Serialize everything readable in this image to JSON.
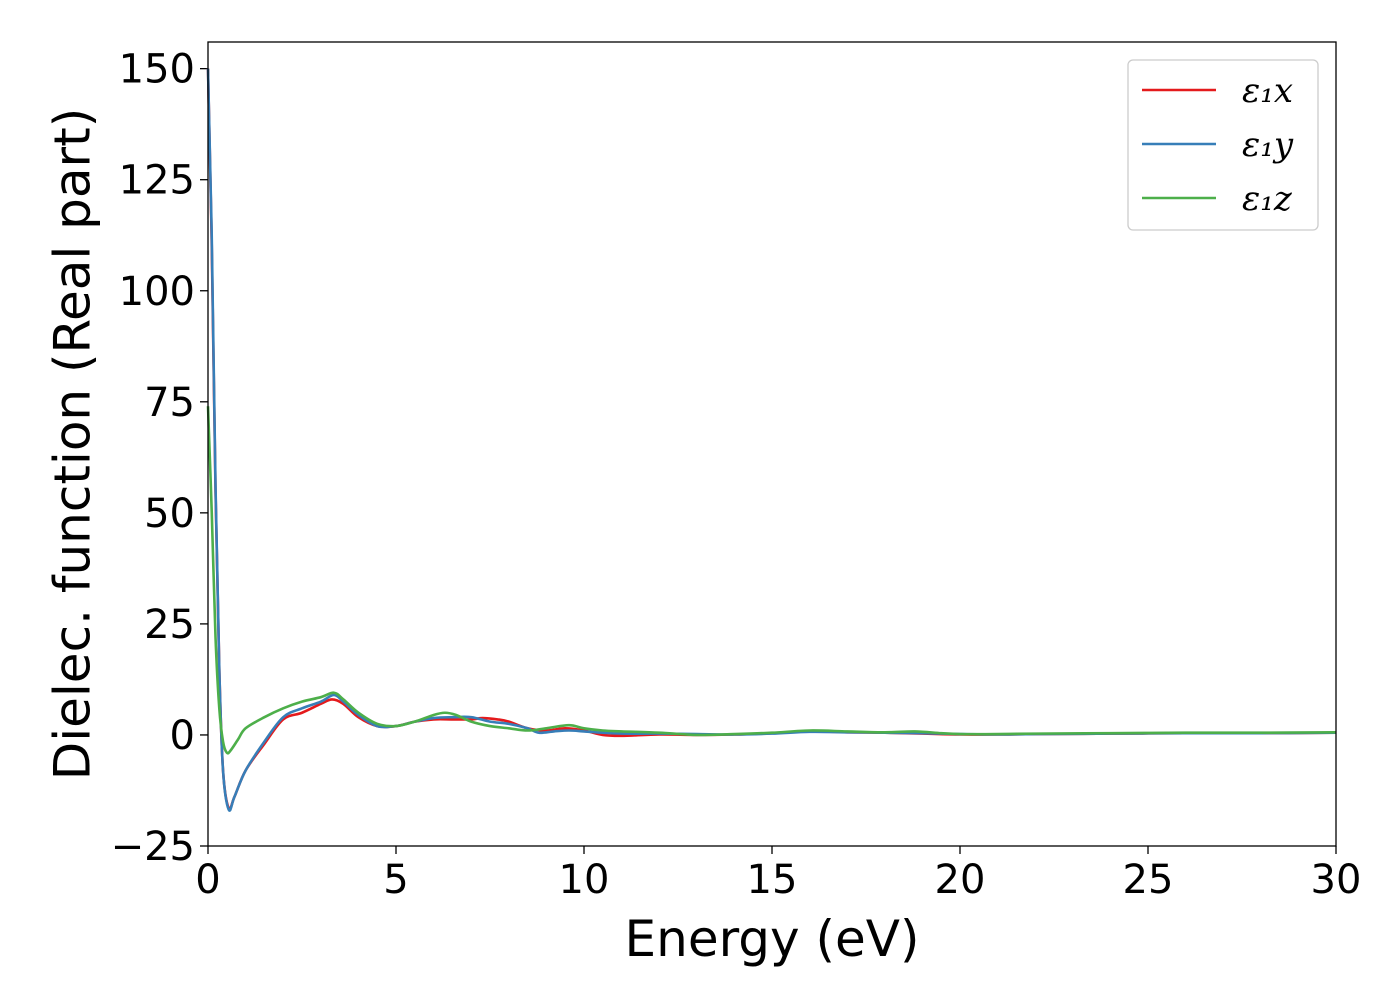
{
  "chart_data": {
    "type": "line",
    "title": "",
    "xlabel": "Energy (eV)",
    "ylabel": "Dielec. function (Real part)",
    "xlim": [
      0,
      30
    ],
    "ylim": [
      -25,
      156
    ],
    "xticks": [
      0,
      5,
      10,
      15,
      20,
      25,
      30
    ],
    "yticks": [
      -25,
      0,
      25,
      50,
      75,
      100,
      125,
      150
    ],
    "xtick_labels": [
      "0",
      "5",
      "10",
      "15",
      "20",
      "25",
      "30"
    ],
    "ytick_labels": [
      "−25",
      "0",
      "25",
      "50",
      "75",
      "100",
      "125",
      "150"
    ],
    "grid": false,
    "legend_position": "top-right",
    "series": [
      {
        "name": "ε₁x",
        "color": "#e41a1c",
        "x": [
          0,
          0.1,
          0.2,
          0.3,
          0.4,
          0.55,
          0.7,
          1.0,
          1.5,
          2.0,
          2.5,
          3.0,
          3.3,
          3.6,
          4.0,
          4.5,
          5.0,
          5.5,
          6.0,
          6.5,
          7.0,
          7.3,
          7.7,
          8.0,
          8.5,
          9.0,
          9.5,
          10.0,
          10.5,
          11.0,
          12.0,
          13.0,
          14.0,
          15.0,
          16.0,
          17.0,
          18.0,
          19.0,
          20.0,
          21.0,
          22.0,
          24.0,
          26.0,
          28.0,
          30.0
        ],
        "y": [
          150,
          110,
          55,
          15,
          -8,
          -16.5,
          -14,
          -8,
          -2,
          3.5,
          5,
          7,
          8,
          7,
          4,
          2,
          2,
          3,
          3.5,
          3.5,
          3.5,
          3.8,
          3.5,
          3,
          1.5,
          1,
          1.5,
          1,
          0,
          -0.2,
          0.1,
          0,
          0.1,
          0.4,
          0.8,
          0.6,
          0.5,
          0.3,
          0.1,
          0.1,
          0.2,
          0.3,
          0.4,
          0.4,
          0.5
        ]
      },
      {
        "name": "ε₁y",
        "color": "#377eb8",
        "x": [
          0,
          0.1,
          0.2,
          0.3,
          0.4,
          0.55,
          0.7,
          1.0,
          1.5,
          2.0,
          2.5,
          3.0,
          3.35,
          3.6,
          4.0,
          4.5,
          5.0,
          5.5,
          6.0,
          6.5,
          7.0,
          7.5,
          8.0,
          8.5,
          8.8,
          9.2,
          9.6,
          10.0,
          10.5,
          11.0,
          12.0,
          13.0,
          14.0,
          15.0,
          16.0,
          17.0,
          18.0,
          19.0,
          20.0,
          21.0,
          22.0,
          24.0,
          26.0,
          28.0,
          30.0
        ],
        "y": [
          150,
          112,
          56,
          15,
          -8,
          -16.8,
          -14,
          -8,
          -1.5,
          4,
          6,
          7.5,
          9,
          7.5,
          4.5,
          2,
          2,
          3,
          3.8,
          4,
          4,
          3,
          2.5,
          1.5,
          0.5,
          0.8,
          1,
          0.8,
          0.5,
          0.3,
          0.3,
          0.2,
          0.1,
          0.3,
          0.7,
          0.6,
          0.5,
          0.4,
          0.2,
          0.1,
          0.2,
          0.3,
          0.4,
          0.4,
          0.5
        ]
      },
      {
        "name": "ε₁z",
        "color": "#4daf4a",
        "x": [
          0,
          0.1,
          0.2,
          0.3,
          0.4,
          0.5,
          0.6,
          0.8,
          1.0,
          1.5,
          2.0,
          2.5,
          3.0,
          3.35,
          3.6,
          4.0,
          4.5,
          5.0,
          5.5,
          6.0,
          6.3,
          6.6,
          7.0,
          7.5,
          8.0,
          8.5,
          9.0,
          9.6,
          10.0,
          10.5,
          11.0,
          12.0,
          13.0,
          14.0,
          15.0,
          16.0,
          17.0,
          18.0,
          18.8,
          19.5,
          20.0,
          21.0,
          22.0,
          24.0,
          26.0,
          28.0,
          30.0
        ],
        "y": [
          74,
          50,
          22,
          6,
          -1.5,
          -4,
          -3.5,
          -1,
          1.5,
          4,
          6,
          7.5,
          8.5,
          9.5,
          8,
          5,
          2.5,
          2,
          3,
          4.5,
          5,
          4.5,
          3,
          2,
          1.5,
          1,
          1.5,
          2.2,
          1.5,
          1,
          0.8,
          0.5,
          0,
          0.2,
          0.5,
          1,
          0.8,
          0.6,
          0.8,
          0.4,
          0.2,
          0.2,
          0.3,
          0.4,
          0.5,
          0.5,
          0.6
        ]
      }
    ]
  }
}
